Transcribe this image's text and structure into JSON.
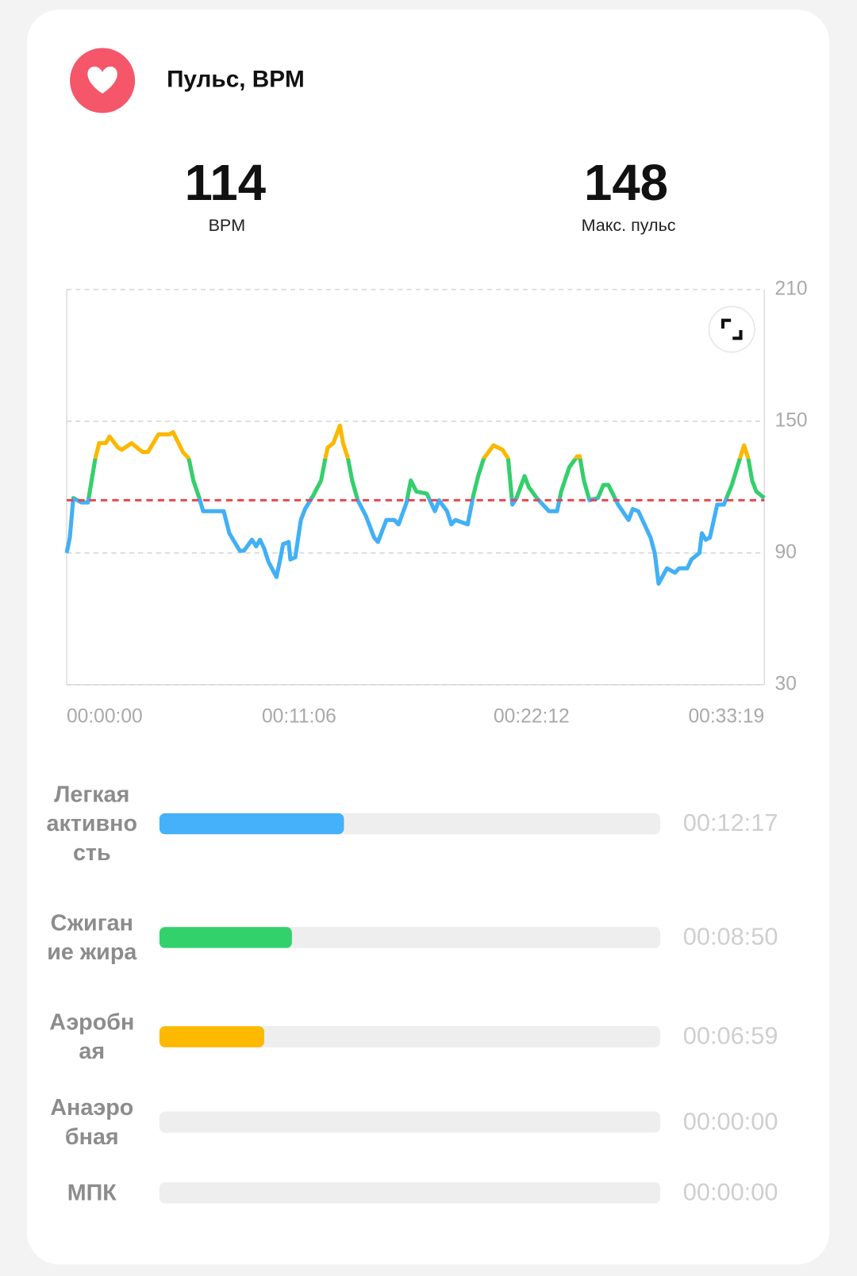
{
  "header": {
    "title": "Пульс, BPM"
  },
  "stats": [
    {
      "value": 114,
      "label": "BPM"
    },
    {
      "value": 148,
      "label": "Макс. пульс"
    }
  ],
  "chart_data": {
    "type": "line",
    "x": [
      0,
      9,
      19,
      42,
      61,
      82,
      93,
      112,
      123,
      147,
      158,
      186,
      217,
      233,
      263,
      294,
      305,
      333,
      350,
      363,
      380,
      391,
      450,
      466,
      496,
      508,
      531,
      543,
      554,
      566,
      578,
      601,
      613,
      620,
      636,
      641,
      655,
      671,
      683,
      706,
      729,
      741,
      748,
      764,
      783,
      792,
      806,
      818,
      834,
      857,
      881,
      892,
      916,
      939,
      951,
      974,
      986,
      1002,
      1032,
      1055,
      1067,
      1090,
      1102,
      1114,
      1149,
      1165,
      1179,
      1195,
      1223,
      1249,
      1265,
      1277,
      1289,
      1312,
      1324,
      1347,
      1382,
      1405,
      1417,
      1440,
      1463,
      1470,
      1482,
      1498,
      1522,
      1538,
      1552,
      1580,
      1610,
      1622,
      1638,
      1673,
      1685,
      1696,
      1720,
      1743,
      1755,
      1778,
      1790,
      1813,
      1820,
      1831,
      1843,
      1864,
      1883,
      1906,
      1929,
      1941,
      1953,
      1964,
      1976,
      1999
    ],
    "series": [
      {
        "values": [
          90,
          97,
          115,
          113,
          113,
          133,
          140,
          140,
          143,
          138,
          137,
          140,
          136,
          136,
          144,
          144,
          145,
          136,
          133,
          123,
          115,
          109,
          109,
          99,
          91,
          91,
          96,
          93,
          96,
          92,
          86,
          79,
          88,
          94,
          95,
          87,
          88,
          105,
          110,
          116,
          123,
          133,
          138,
          140,
          148,
          140,
          133,
          123,
          114,
          107,
          97,
          95,
          105,
          105,
          103,
          113,
          123,
          118,
          117,
          109,
          114,
          109,
          103,
          105,
          103,
          116,
          125,
          133,
          139,
          137,
          133,
          112,
          115,
          125,
          120,
          115,
          109,
          109,
          118,
          129,
          134,
          134,
          123,
          114,
          115,
          121,
          121,
          112,
          105,
          110,
          109,
          97,
          90,
          76,
          83,
          81,
          83,
          83,
          87,
          90,
          99,
          96,
          97,
          112,
          112,
          121,
          133,
          139,
          133,
          123,
          118,
          115
        ],
        "color": "#42b0f5",
        "bands": [
          {
            "min": 115,
            "color": "#34cf6c"
          },
          {
            "min": 133,
            "color": "#fbb800"
          }
        ]
      }
    ],
    "xlim": [
      0,
      1999
    ],
    "xticks": [
      {
        "value": 0,
        "label": "00:00:00"
      },
      {
        "value": 666,
        "label": "00:11:06"
      },
      {
        "value": 1332,
        "label": "00:22:12"
      },
      {
        "value": 1999,
        "label": "00:33:19"
      }
    ],
    "ylim": [
      30,
      210
    ],
    "yticks": [
      30,
      90,
      150,
      210
    ],
    "grid": true,
    "average_color": "#e5484d"
  },
  "zones": [
    {
      "name": "Легкая активность",
      "color": "#45b1fa",
      "value": 737,
      "value_label": "00:12:17"
    },
    {
      "name": "Сжигание жира",
      "color": "#32d16c",
      "value": 530,
      "value_label": "00:08:50"
    },
    {
      "name": "Аэробная",
      "color": "#fcb900",
      "value": 419,
      "value_label": "00:06:59"
    },
    {
      "name": "Анаэробная",
      "value": 0,
      "value_label": "00:00:00"
    },
    {
      "name": "МПК",
      "value": 0,
      "value_label": "00:00:00"
    }
  ]
}
